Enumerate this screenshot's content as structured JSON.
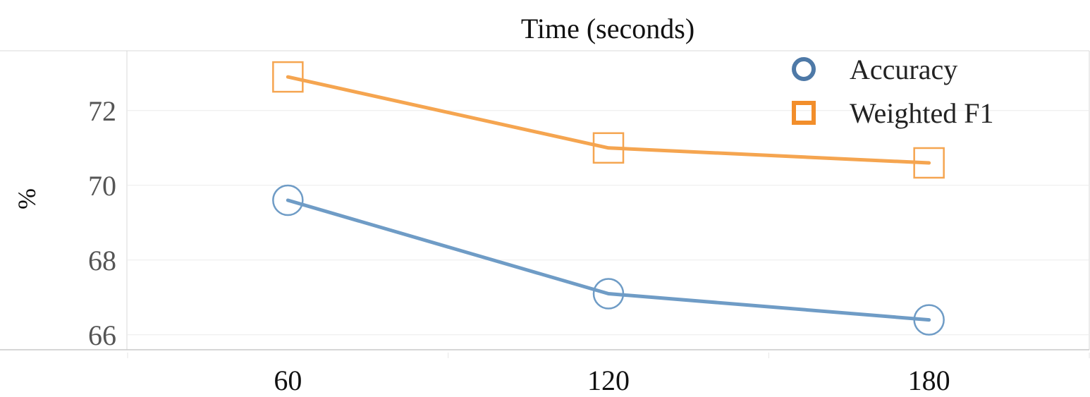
{
  "chart_data": {
    "type": "line",
    "title": "Time (seconds)",
    "xlabel": "",
    "ylabel": "%",
    "categories": [
      "60",
      "120",
      "180"
    ],
    "yticks": [
      "66",
      "68",
      "70",
      "72"
    ],
    "ylim": [
      65.6,
      73.6
    ],
    "grid": true,
    "legend_position": "top-right",
    "series": [
      {
        "name": "Accuracy",
        "marker": "circle",
        "color": "#6f9cc6",
        "legend_color": "#4e79a7",
        "values": [
          69.6,
          67.1,
          66.4
        ]
      },
      {
        "name": "Weighted F1",
        "marker": "square",
        "color": "#f5a550",
        "legend_color": "#f28e2b",
        "values": [
          72.9,
          71.0,
          70.6
        ]
      }
    ]
  }
}
